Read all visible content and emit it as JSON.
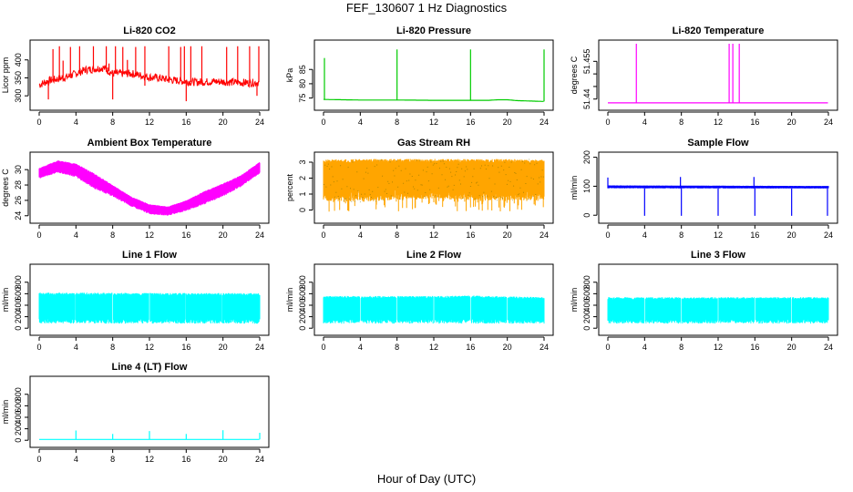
{
  "title": "FEF_130607  1 Hz Diagnostics",
  "xlabel": "Hour of Day (UTC)",
  "colors": {
    "red": "#ff0000",
    "green": "#00cc00",
    "magenta": "#ff00ff",
    "orange": "#ffa500",
    "blue": "#0000ff",
    "cyan": "#00ffff"
  },
  "chart_data": [
    {
      "type": "line",
      "title": "Li-820 CO2",
      "ylabel": "Licor ppm",
      "color": "red",
      "xlim": [
        0,
        24
      ],
      "ylim": [
        270,
        445
      ],
      "xticks": [
        0,
        4,
        8,
        12,
        16,
        20,
        24
      ],
      "yticks": [
        300,
        350,
        400
      ],
      "baseline": [
        [
          0,
          330
        ],
        [
          1,
          342
        ],
        [
          3,
          352
        ],
        [
          5,
          372
        ],
        [
          7,
          378
        ],
        [
          8,
          362
        ],
        [
          10,
          362
        ],
        [
          12,
          352
        ],
        [
          13,
          350
        ],
        [
          14,
          345
        ],
        [
          16,
          340
        ],
        [
          17,
          338
        ],
        [
          19,
          340
        ],
        [
          21,
          338
        ],
        [
          23,
          336
        ],
        [
          24,
          338
        ]
      ],
      "spikes": [
        [
          1,
          290
        ],
        [
          1.5,
          430
        ],
        [
          2.2,
          438
        ],
        [
          2.6,
          398
        ],
        [
          3.4,
          436
        ],
        [
          4.4,
          438
        ],
        [
          5.9,
          438
        ],
        [
          7.3,
          438
        ],
        [
          7.6,
          390
        ],
        [
          8,
          290
        ],
        [
          8.3,
          438
        ],
        [
          9.1,
          436
        ],
        [
          9.6,
          400
        ],
        [
          10.5,
          436
        ],
        [
          11.5,
          438
        ],
        [
          11.5,
          328
        ],
        [
          14.1,
          438
        ],
        [
          15.4,
          436
        ],
        [
          15.8,
          438
        ],
        [
          16,
          285
        ],
        [
          16.5,
          438
        ],
        [
          17.7,
          438
        ],
        [
          20.4,
          436
        ],
        [
          21.6,
          438
        ],
        [
          22.9,
          438
        ],
        [
          23.7,
          300
        ],
        [
          23.9,
          438
        ]
      ]
    },
    {
      "type": "line",
      "title": "Li-820 Pressure",
      "ylabel": "kPa",
      "color": "green",
      "xlim": [
        0,
        24
      ],
      "ylim": [
        72,
        94
      ],
      "xticks": [
        0,
        4,
        8,
        12,
        16,
        20,
        24
      ],
      "yticks": [
        75,
        80,
        85
      ],
      "baseline": [
        [
          0,
          74.5
        ],
        [
          4,
          74.3
        ],
        [
          8,
          74.3
        ],
        [
          12,
          74.2
        ],
        [
          16,
          74.2
        ],
        [
          18,
          74.2
        ],
        [
          19,
          74.4
        ],
        [
          20,
          74.4
        ],
        [
          21,
          74.1
        ],
        [
          24,
          73.8
        ]
      ],
      "spikes": [
        [
          0.1,
          89
        ],
        [
          8,
          92
        ],
        [
          16,
          92
        ],
        [
          24,
          92
        ]
      ]
    },
    {
      "type": "line",
      "title": "Li-820 Temperature",
      "ylabel": "degrees C",
      "color": "magenta",
      "xlim": [
        0,
        24
      ],
      "ylim": [
        51.437,
        51.462
      ],
      "xticks": [
        0,
        4,
        8,
        12,
        16,
        20,
        24
      ],
      "yticks": [
        51.44,
        51.455
      ],
      "extra_yticks": [
        51.445,
        51.45
      ],
      "baseline": [
        [
          0,
          51.4385
        ],
        [
          24,
          51.4385
        ]
      ],
      "spikes": [
        [
          3.1,
          51.462
        ],
        [
          13.2,
          51.462
        ],
        [
          13.6,
          51.462
        ],
        [
          14.3,
          51.462
        ]
      ]
    },
    {
      "type": "line",
      "title": "Ambient Box Temperature",
      "ylabel": "degrees C",
      "color": "magenta",
      "xlim": [
        0,
        24
      ],
      "ylim": [
        23.5,
        31.8
      ],
      "xticks": [
        0,
        4,
        8,
        12,
        16,
        20,
        24
      ],
      "yticks": [
        24,
        26,
        28,
        30
      ],
      "band_low": [
        [
          0,
          28.8
        ],
        [
          2,
          29.6
        ],
        [
          4,
          29.0
        ],
        [
          6,
          27.5
        ],
        [
          8,
          26.5
        ],
        [
          10,
          25.2
        ],
        [
          12,
          24.2
        ],
        [
          14,
          24.0
        ],
        [
          16,
          24.6
        ],
        [
          18,
          25.5
        ],
        [
          20,
          26.5
        ],
        [
          22,
          27.8
        ],
        [
          24,
          29.5
        ]
      ],
      "band_high": [
        [
          0,
          30.2
        ],
        [
          2,
          31.2
        ],
        [
          4,
          30.8
        ],
        [
          6,
          29.5
        ],
        [
          8,
          28.0
        ],
        [
          10,
          26.5
        ],
        [
          12,
          25.5
        ],
        [
          14,
          25.2
        ],
        [
          16,
          26.0
        ],
        [
          18,
          27.2
        ],
        [
          20,
          28.2
        ],
        [
          22,
          29.3
        ],
        [
          24,
          31.0
        ]
      ]
    },
    {
      "type": "line",
      "title": "Gas Stream RH",
      "ylabel": "percent",
      "color": "orange",
      "xlim": [
        0,
        24
      ],
      "ylim": [
        -0.6,
        3.4
      ],
      "xticks": [
        0,
        4,
        8,
        12,
        16,
        20,
        24
      ],
      "yticks": [
        0,
        1,
        2,
        3
      ],
      "band_low": [
        [
          0,
          0.6
        ],
        [
          4,
          0.5
        ],
        [
          8,
          0.6
        ],
        [
          12,
          0.7
        ],
        [
          16,
          0.6
        ],
        [
          20,
          0.6
        ],
        [
          24,
          0.6
        ]
      ],
      "band_high": [
        [
          0,
          3.15
        ],
        [
          4,
          3.2
        ],
        [
          8,
          3.2
        ],
        [
          12,
          3.2
        ],
        [
          16,
          3.2
        ],
        [
          20,
          3.2
        ],
        [
          24,
          3.15
        ]
      ]
    },
    {
      "type": "line",
      "title": "Sample Flow",
      "ylabel": "ml/min",
      "color": "blue",
      "xlim": [
        0,
        24
      ],
      "ylim": [
        -15,
        205
      ],
      "xticks": [
        0,
        4,
        8,
        12,
        16,
        20,
        24
      ],
      "yticks": [
        0,
        100,
        200
      ],
      "band_low": [
        [
          0,
          93
        ],
        [
          24,
          92
        ]
      ],
      "band_high": [
        [
          0,
          103
        ],
        [
          24,
          101
        ]
      ],
      "spikes": [
        [
          0,
          130
        ],
        [
          4,
          -2
        ],
        [
          7.9,
          132
        ],
        [
          8,
          -2
        ],
        [
          12,
          -2
        ],
        [
          15.9,
          132
        ],
        [
          16,
          -2
        ],
        [
          20,
          -2
        ],
        [
          23.9,
          -2
        ]
      ]
    },
    {
      "type": "line",
      "title": "Line 1 Flow",
      "ylabel": "ml/min",
      "color": "cyan",
      "xlim": [
        0,
        24
      ],
      "ylim": [
        -60,
        1050
      ],
      "xticks": [
        0,
        4,
        8,
        12,
        16,
        20,
        24
      ],
      "yticks": [
        0,
        200,
        400,
        600,
        800
      ],
      "band_low": [
        [
          0,
          80
        ],
        [
          24,
          80
        ]
      ],
      "band_high": [
        [
          0,
          620
        ],
        [
          24,
          610
        ]
      ],
      "gaps": [
        3.9,
        8,
        12,
        15.9,
        19.9
      ]
    },
    {
      "type": "line",
      "title": "Line 2 Flow",
      "ylabel": "ml/min",
      "color": "cyan",
      "xlim": [
        0,
        24
      ],
      "ylim": [
        -60,
        1050
      ],
      "xticks": [
        0,
        4,
        8,
        12,
        16,
        20,
        24
      ],
      "yticks": [
        0,
        200,
        400,
        600,
        800
      ],
      "band_low": [
        [
          0,
          80
        ],
        [
          24,
          80
        ]
      ],
      "band_high": [
        [
          0,
          560
        ],
        [
          12,
          560
        ],
        [
          16,
          570
        ],
        [
          24,
          540
        ]
      ],
      "gaps": [
        4,
        8,
        12,
        16,
        20
      ]
    },
    {
      "type": "line",
      "title": "Line 3 Flow",
      "ylabel": "ml/min",
      "color": "cyan",
      "xlim": [
        0,
        24
      ],
      "ylim": [
        -60,
        1050
      ],
      "xticks": [
        0,
        4,
        8,
        12,
        16,
        20,
        24
      ],
      "yticks": [
        0,
        200,
        400,
        600,
        800
      ],
      "band_low": [
        [
          0,
          80
        ],
        [
          24,
          80
        ]
      ],
      "band_high": [
        [
          0,
          540
        ],
        [
          24,
          540
        ]
      ],
      "gaps": [
        4,
        8,
        12,
        16,
        20
      ]
    },
    {
      "type": "line",
      "title": "Line 4 (LT) Flow",
      "ylabel": "ml/min",
      "color": "cyan",
      "xlim": [
        0,
        24
      ],
      "ylim": [
        -60,
        1050
      ],
      "xticks": [
        0,
        4,
        8,
        12,
        16,
        20,
        24
      ],
      "yticks": [
        0,
        200,
        400,
        600,
        800
      ],
      "baseline": [
        [
          0,
          15
        ],
        [
          24,
          15
        ]
      ],
      "spikes": [
        [
          4,
          170
        ],
        [
          8,
          110
        ],
        [
          12,
          160
        ],
        [
          16,
          110
        ],
        [
          20,
          175
        ],
        [
          24,
          130
        ]
      ]
    }
  ]
}
